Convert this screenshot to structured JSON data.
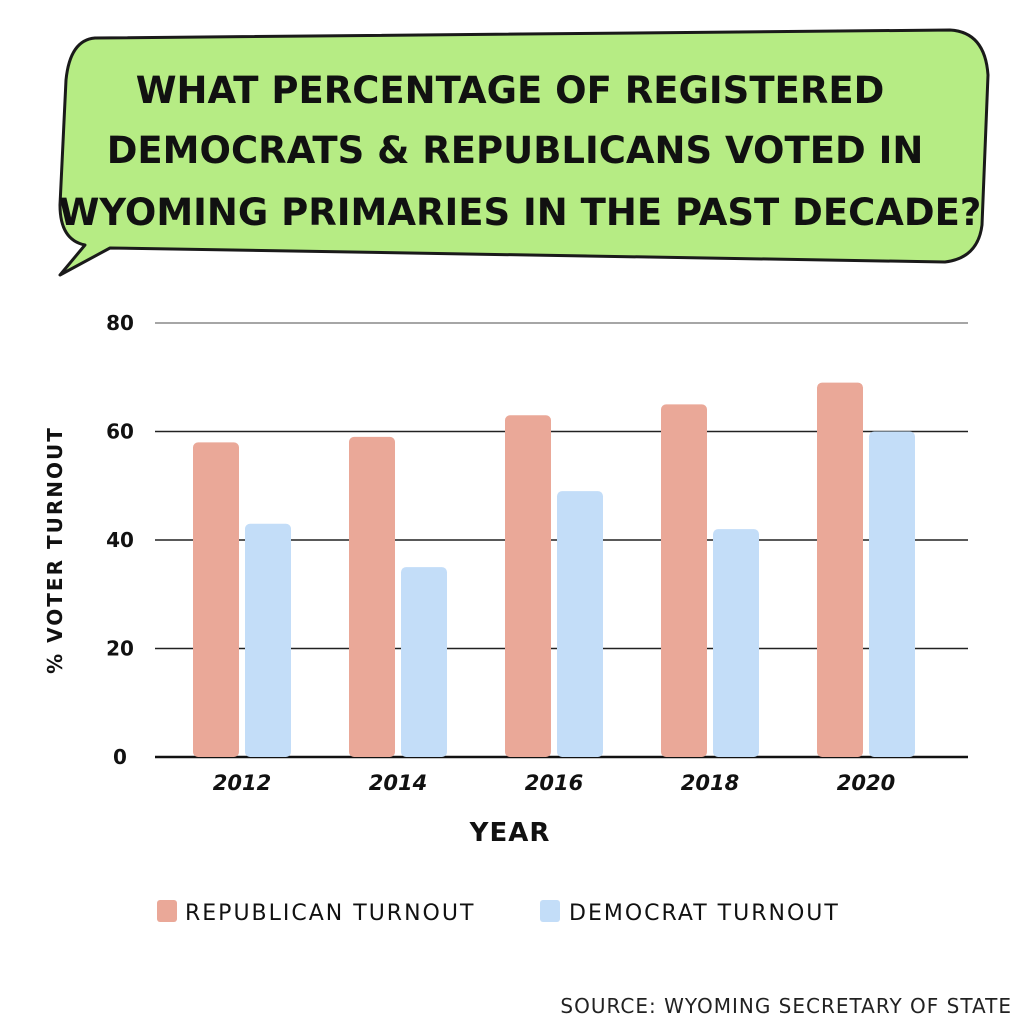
{
  "chart_data": {
    "type": "bar",
    "title": "WHAT PERCENTAGE OF REGISTERED DEMOCRATS & REPUBLICANS VOTED IN WYOMING PRIMARIES IN THE PAST DECADE?",
    "title_lines": [
      "WHAT PERCENTAGE  OF REGISTERED",
      "DEMOCRATS & REPUBLICANS VOTED IN",
      "WYOMING PRIMARIES IN THE PAST DECADE?"
    ],
    "xlabel": "YEAR",
    "ylabel": "% VOTER TURNOUT",
    "categories": [
      "2012",
      "2014",
      "2016",
      "2018",
      "2020"
    ],
    "series": [
      {
        "name": "REPUBLICAN TURNOUT",
        "values": [
          58,
          59,
          63,
          65,
          69
        ],
        "color": "#eaa898"
      },
      {
        "name": "DEMOCRAT TURNOUT",
        "values": [
          43,
          35,
          49,
          42,
          60
        ],
        "color": "#c3ddf8"
      }
    ],
    "ylim": [
      0,
      80
    ],
    "yticks": [
      "0",
      "20",
      "40",
      "60",
      "80"
    ],
    "grid": true,
    "legend_position": "bottom",
    "source": "SOURCE: WYOMING SECRETARY OF STATE",
    "bubble_color": "#b6ec84"
  }
}
